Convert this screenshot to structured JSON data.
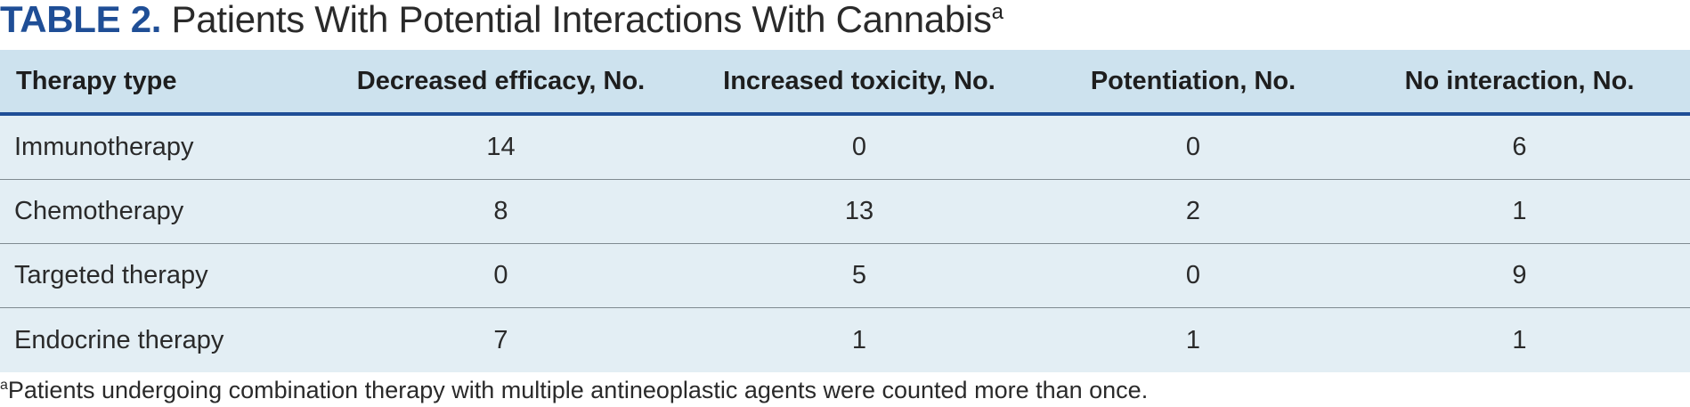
{
  "title": {
    "label": "TABLE 2.",
    "text": "Patients With Potential Interactions With Cannabis",
    "footnote_marker": "a"
  },
  "table": {
    "columns": [
      "Therapy type",
      "Decreased efficacy, No.",
      "Increased toxicity, No.",
      "Potentiation, No.",
      "No interaction, No."
    ],
    "rows": [
      [
        "Immunotherapy",
        "14",
        "0",
        "0",
        "6"
      ],
      [
        "Chemotherapy",
        "8",
        "13",
        "2",
        "1"
      ],
      [
        "Targeted therapy",
        "0",
        "5",
        "0",
        "9"
      ],
      [
        "Endocrine therapy",
        "7",
        "1",
        "1",
        "1"
      ]
    ]
  },
  "footnote": {
    "marker": "a",
    "text": "Patients undergoing combination therapy with multiple antineoplastic agents were counted more than once."
  },
  "colors": {
    "accent": "#1f4e96",
    "header_bg": "#cde2ee",
    "row_bg": "#e3eef4"
  }
}
